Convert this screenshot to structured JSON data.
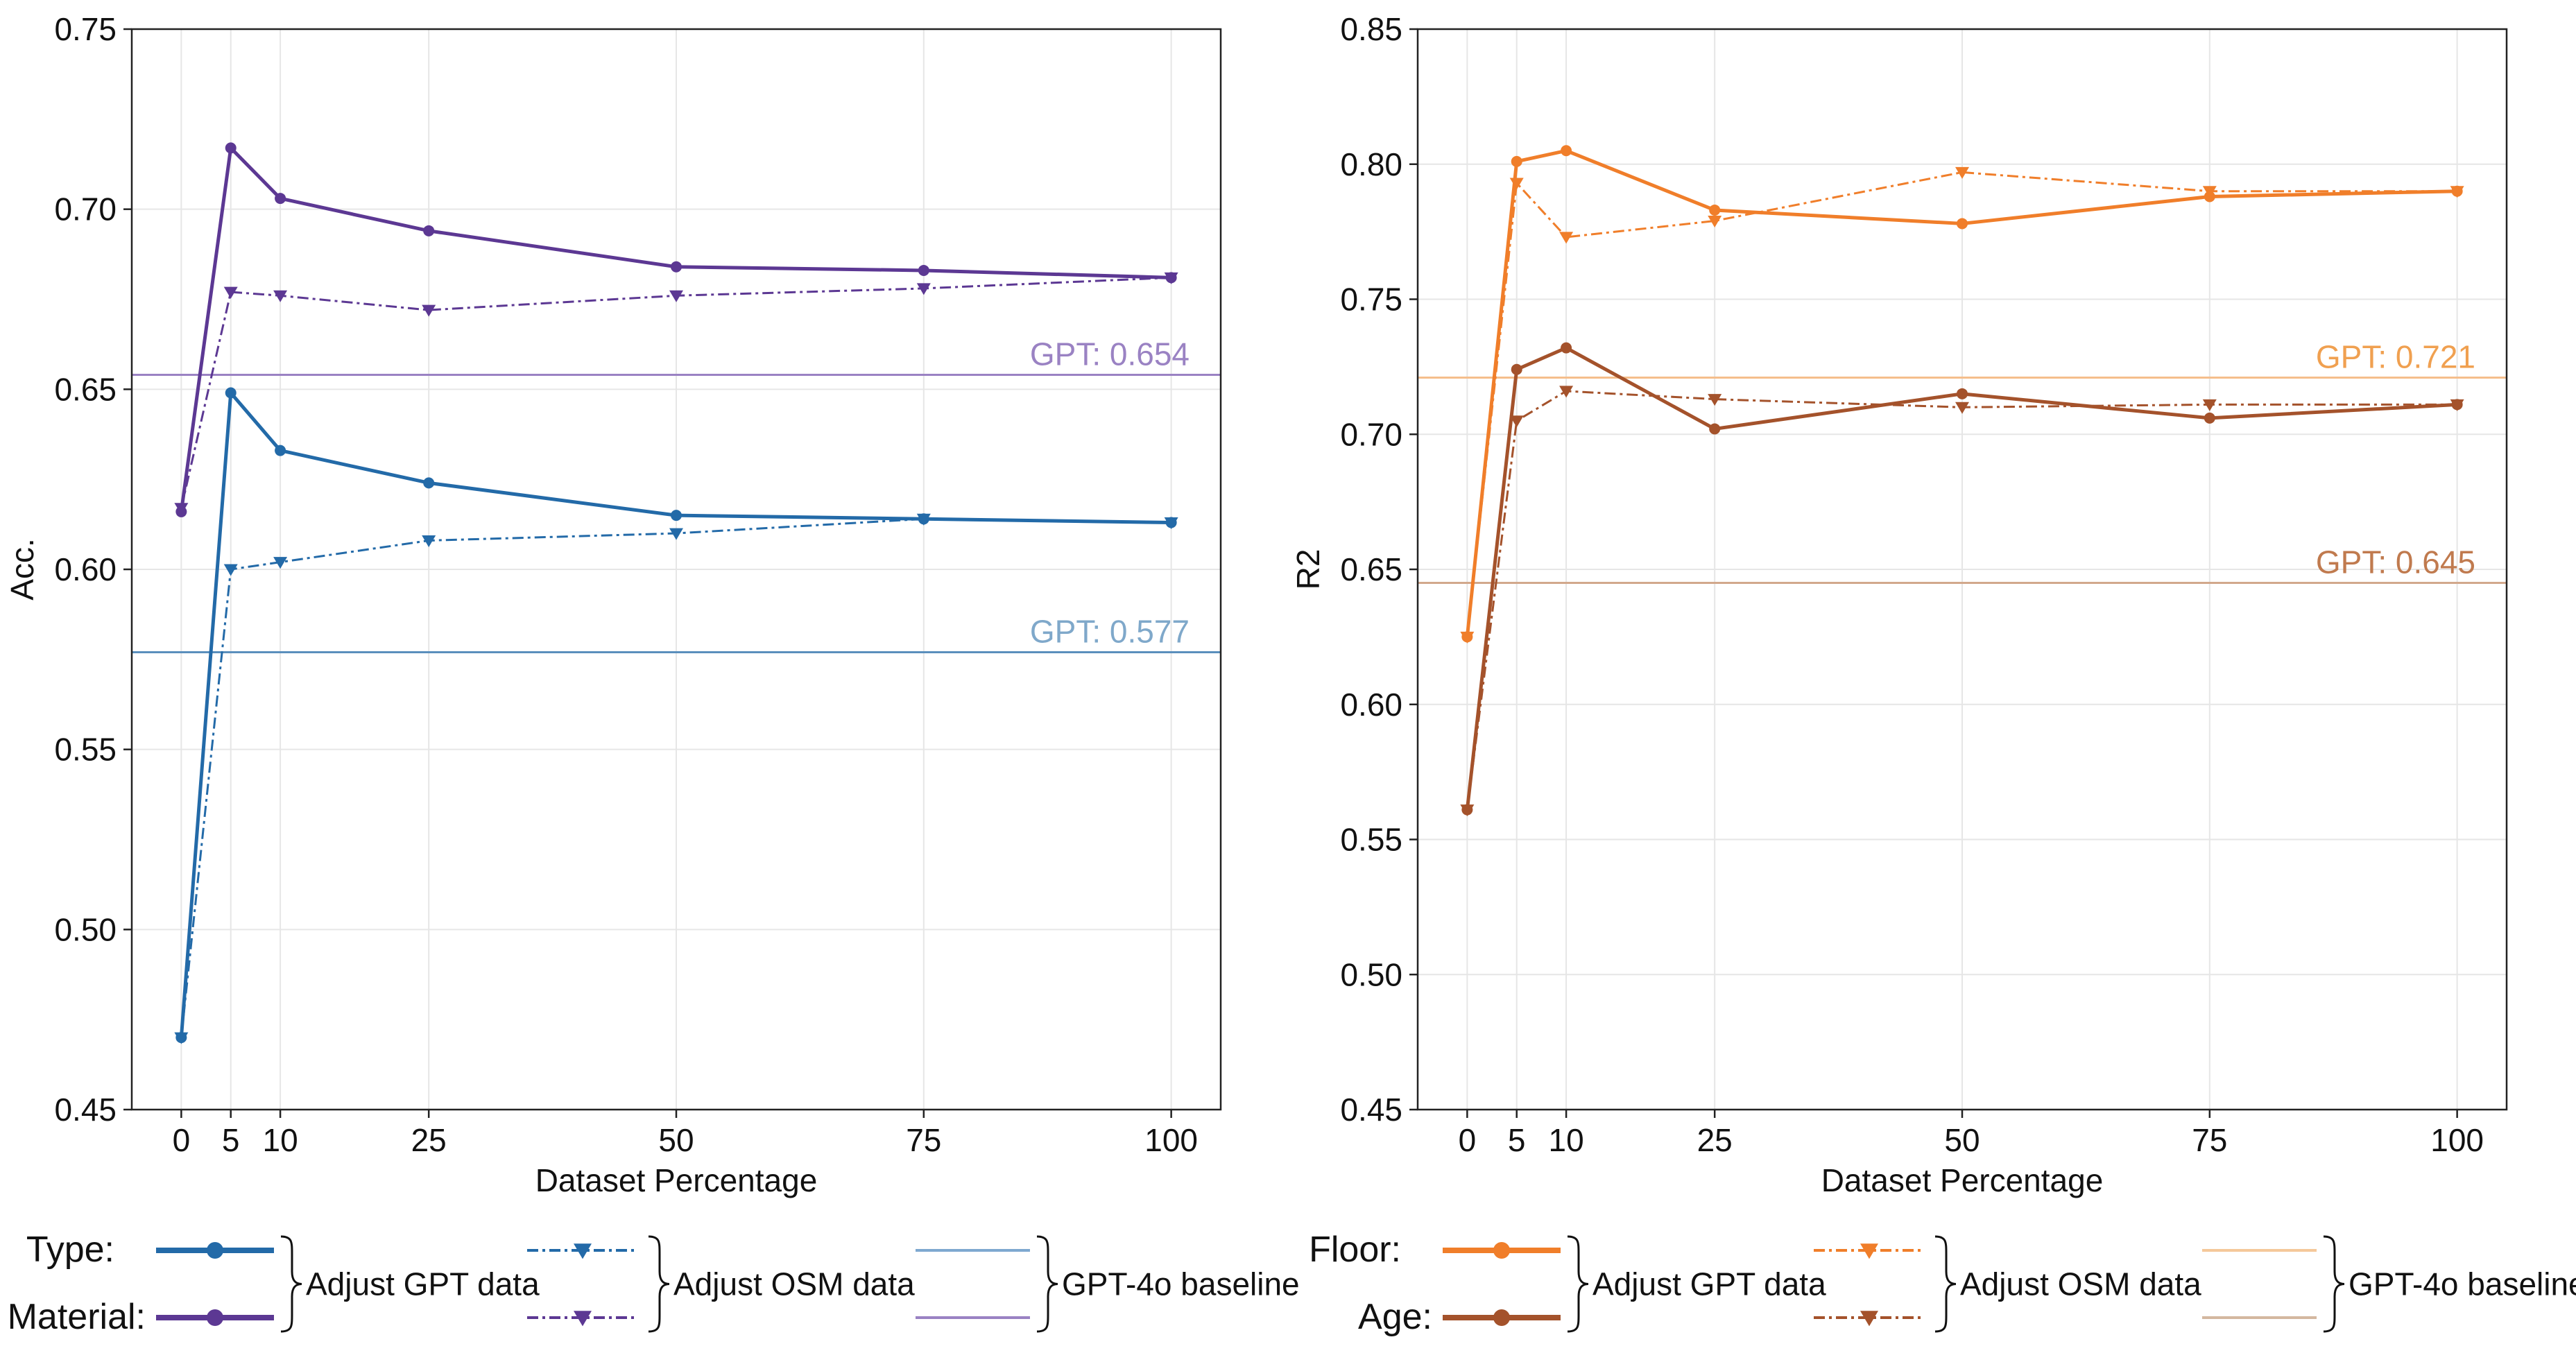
{
  "chart_data": [
    {
      "type": "line",
      "id": "left",
      "xlabel": "Dataset Percentage",
      "ylabel": "Acc.",
      "xlim": [
        -5,
        105
      ],
      "ylim": [
        0.45,
        0.75
      ],
      "x_ticks": [
        0,
        5,
        10,
        25,
        50,
        75,
        100
      ],
      "y_ticks": [
        0.45,
        0.5,
        0.55,
        0.6,
        0.65,
        0.7,
        0.75
      ],
      "grid": true,
      "x": [
        0,
        5,
        10,
        25,
        50,
        75,
        100
      ],
      "series": [
        {
          "name": "Material: Adjust GPT data",
          "color": "#5c3893",
          "style": "solid",
          "marker": "circle",
          "values": [
            0.616,
            0.717,
            0.703,
            0.694,
            0.684,
            0.683,
            0.681
          ]
        },
        {
          "name": "Material: Adjust OSM data",
          "color": "#5c3893",
          "style": "dashdot",
          "marker": "triangle-down",
          "values": [
            0.617,
            0.677,
            0.676,
            0.672,
            0.676,
            0.678,
            0.681
          ]
        },
        {
          "name": "Type: Adjust GPT data",
          "color": "#236aa8",
          "style": "solid",
          "marker": "circle",
          "values": [
            0.47,
            0.649,
            0.633,
            0.624,
            0.615,
            0.614,
            0.613
          ]
        },
        {
          "name": "Type: Adjust OSM data",
          "color": "#236aa8",
          "style": "dashdot",
          "marker": "triangle-down",
          "values": [
            0.47,
            0.6,
            0.602,
            0.608,
            0.61,
            0.614,
            0.613
          ]
        }
      ],
      "baselines": [
        {
          "name": "Material: GPT-4o baseline",
          "value": 0.654,
          "label": "GPT: 0.654",
          "line_color": "#9a82c3",
          "label_color": "#9a82c3"
        },
        {
          "name": "Type: GPT-4o baseline",
          "value": 0.577,
          "label": "GPT: 0.577",
          "line_color": "#5a8fbd",
          "label_color": "#7fa8ca"
        }
      ],
      "legend": {
        "row_labels": [
          "Type:",
          "Material:"
        ],
        "row_colors": [
          "#236aa8",
          "#5c3893"
        ],
        "baseline_colors": [
          "#7ea8d0",
          "#9a82c3"
        ],
        "groups": [
          "Adjust GPT data",
          "Adjust OSM data",
          "GPT-4o baseline"
        ]
      }
    },
    {
      "type": "line",
      "id": "right",
      "xlabel": "Dataset Percentage",
      "ylabel": "R2",
      "xlim": [
        -5,
        105
      ],
      "ylim": [
        0.45,
        0.85
      ],
      "x_ticks": [
        0,
        5,
        10,
        25,
        50,
        75,
        100
      ],
      "y_ticks": [
        0.45,
        0.5,
        0.55,
        0.6,
        0.65,
        0.7,
        0.75,
        0.8,
        0.85
      ],
      "grid": true,
      "x": [
        0,
        5,
        10,
        25,
        50,
        75,
        100
      ],
      "series": [
        {
          "name": "Floor: Adjust GPT data",
          "color": "#f07e2a",
          "style": "solid",
          "marker": "circle",
          "values": [
            0.625,
            0.801,
            0.805,
            0.783,
            0.778,
            0.788,
            0.79
          ]
        },
        {
          "name": "Floor: Adjust OSM data",
          "color": "#f07e2a",
          "style": "dashdot",
          "marker": "triangle-down",
          "values": [
            0.625,
            0.793,
            0.773,
            0.779,
            0.797,
            0.79,
            0.79
          ]
        },
        {
          "name": "Age: Adjust GPT data",
          "color": "#a4522b",
          "style": "solid",
          "marker": "circle",
          "values": [
            0.561,
            0.724,
            0.732,
            0.702,
            0.715,
            0.706,
            0.711
          ]
        },
        {
          "name": "Age: Adjust OSM data",
          "color": "#a4522b",
          "style": "dashdot",
          "marker": "triangle-down",
          "values": [
            0.561,
            0.705,
            0.716,
            0.713,
            0.71,
            0.711,
            0.711
          ]
        }
      ],
      "baselines": [
        {
          "name": "Floor: GPT-4o baseline",
          "value": 0.721,
          "label": "GPT: 0.721",
          "line_color": "#f5be8c",
          "label_color": "#f0a050"
        },
        {
          "name": "Age: GPT-4o baseline",
          "value": 0.645,
          "label": "GPT: 0.645",
          "line_color": "#d2a88c",
          "label_color": "#c07a4e"
        }
      ],
      "legend": {
        "row_labels": [
          "Floor:",
          "Age:"
        ],
        "row_colors": [
          "#f07e2a",
          "#a4522b"
        ],
        "baseline_colors": [
          "#f5c89a",
          "#d4b8a0"
        ],
        "groups": [
          "Adjust GPT data",
          "Adjust OSM data",
          "GPT-4o baseline"
        ]
      }
    }
  ]
}
